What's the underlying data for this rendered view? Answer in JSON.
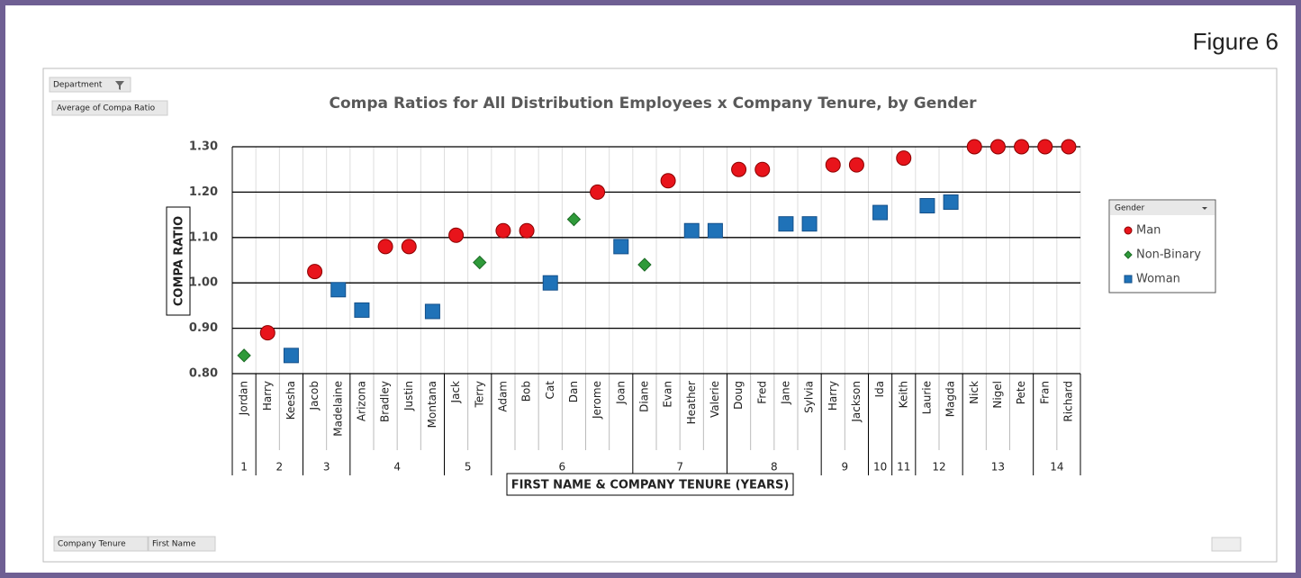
{
  "figure_label": "Figure 6",
  "field_buttons": {
    "filter": "Department",
    "value": "Average of Compa Ratio",
    "axis": [
      "Company Tenure",
      "First Name"
    ]
  },
  "chart_data": {
    "type": "scatter",
    "title": "Compa Ratios for All Distribution Employees x Company Tenure, by Gender",
    "y_label": "COMPA RATIO",
    "x_label": "FIRST NAME & COMPANY TENURE (YEARS)",
    "legend_title": "Gender",
    "legend": "right",
    "grid": true,
    "ylim": [
      0.8,
      1.3
    ],
    "yticks": [
      {
        "value": 0.8,
        "label": "0.80"
      },
      {
        "value": 0.9,
        "label": "0.90"
      },
      {
        "value": 1.0,
        "label": "1.00"
      },
      {
        "value": 1.1,
        "label": "1.10"
      },
      {
        "value": 1.2,
        "label": "1.20"
      },
      {
        "value": 1.3,
        "label": "1.30"
      }
    ],
    "groups": [
      {
        "label": "1",
        "categories": [
          "Jordan"
        ]
      },
      {
        "label": "2",
        "categories": [
          "Harry",
          "Keesha"
        ]
      },
      {
        "label": "3",
        "categories": [
          "Jacob",
          "Madelaine"
        ]
      },
      {
        "label": "4",
        "categories": [
          "Arizona",
          "Bradley",
          "Justin",
          "Montana"
        ]
      },
      {
        "label": "5",
        "categories": [
          "Jack",
          "Terry"
        ]
      },
      {
        "label": "6",
        "categories": [
          "Adam",
          "Bob",
          "Cat",
          "Dan",
          "Jerome",
          "Joan"
        ]
      },
      {
        "label": "7",
        "categories": [
          "Diane",
          "Evan",
          "Heather",
          "Valerie"
        ]
      },
      {
        "label": "8",
        "categories": [
          "Doug",
          "Fred",
          "Jane",
          "Sylvia"
        ]
      },
      {
        "label": "9",
        "categories": [
          "Harry",
          "Jackson"
        ]
      },
      {
        "label": "10",
        "categories": [
          "Ida"
        ]
      },
      {
        "label": "11",
        "categories": [
          "Keith"
        ]
      },
      {
        "label": "12",
        "categories": [
          "Laurie",
          "Magda"
        ]
      },
      {
        "label": "13",
        "categories": [
          "Nick",
          "Nigel",
          "Pete"
        ]
      },
      {
        "label": "14",
        "categories": [
          "Fran",
          "Richard"
        ]
      }
    ],
    "series": [
      {
        "name": "Man",
        "color": "#e8141b",
        "marker": "circle",
        "values": [
          null,
          0.89,
          null,
          1.025,
          null,
          null,
          1.08,
          1.08,
          null,
          1.105,
          null,
          1.115,
          1.115,
          null,
          null,
          1.2,
          null,
          null,
          1.225,
          null,
          null,
          1.25,
          1.25,
          null,
          null,
          1.26,
          1.26,
          null,
          1.275,
          null,
          null,
          1.3,
          1.3,
          1.3,
          1.3,
          1.3
        ]
      },
      {
        "name": "Non-Binary",
        "color": "#2f9a3a",
        "marker": "diamond",
        "values": [
          0.84,
          null,
          null,
          null,
          null,
          null,
          null,
          null,
          null,
          null,
          1.045,
          null,
          null,
          null,
          1.14,
          null,
          null,
          1.04,
          null,
          null,
          null,
          null,
          null,
          null,
          null,
          null,
          null,
          null,
          null,
          null,
          null,
          null,
          null,
          null,
          null,
          null
        ]
      },
      {
        "name": "Woman",
        "color": "#1f72b8",
        "marker": "square",
        "values": [
          null,
          null,
          0.84,
          null,
          0.985,
          0.94,
          null,
          null,
          0.937,
          null,
          null,
          null,
          null,
          1.0,
          null,
          null,
          1.08,
          null,
          null,
          1.115,
          1.115,
          null,
          null,
          1.13,
          1.13,
          null,
          null,
          1.155,
          null,
          1.17,
          1.178,
          null,
          null,
          null,
          null,
          null
        ]
      }
    ]
  }
}
